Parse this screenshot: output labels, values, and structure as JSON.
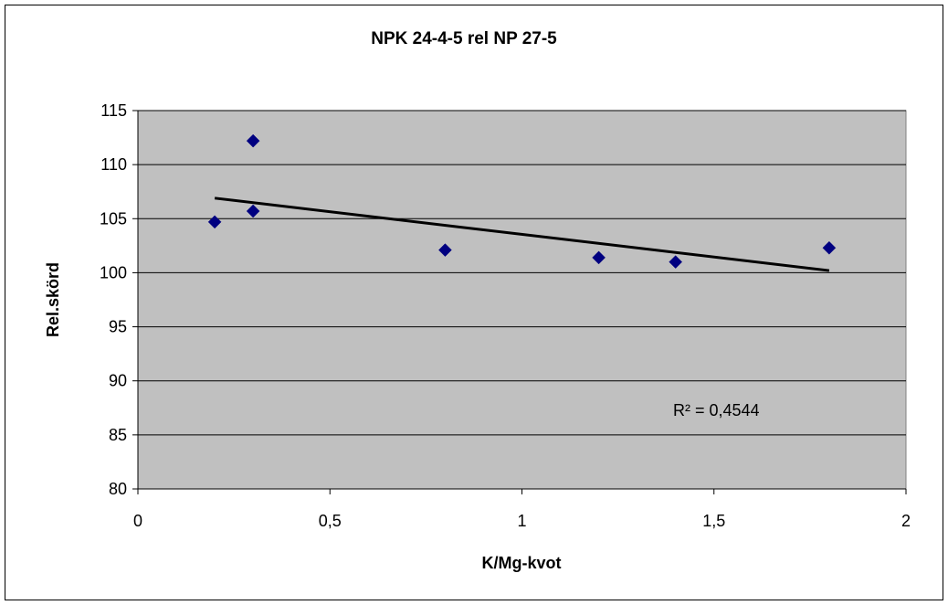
{
  "chart_data": {
    "type": "scatter",
    "title": "NPK 24-4-5 rel NP 27-5",
    "xlabel": "K/Mg-kvot",
    "ylabel": "Rel.skörd",
    "xlim": [
      0,
      2
    ],
    "ylim": [
      80,
      115
    ],
    "x_ticks": [
      "0",
      "0,5",
      "1",
      "1,5",
      "2"
    ],
    "y_ticks": [
      "80",
      "85",
      "90",
      "95",
      "100",
      "105",
      "110",
      "115"
    ],
    "grid": "horizontal",
    "legend": "none",
    "points": [
      {
        "x": 0.2,
        "y": 104.7
      },
      {
        "x": 0.3,
        "y": 112.2
      },
      {
        "x": 0.3,
        "y": 105.7
      },
      {
        "x": 0.8,
        "y": 102.1
      },
      {
        "x": 1.2,
        "y": 101.4
      },
      {
        "x": 1.4,
        "y": 101.0
      },
      {
        "x": 1.8,
        "y": 102.3
      }
    ],
    "trendline": {
      "type": "linear",
      "x_start": 0.2,
      "y_start": 106.9,
      "x_end": 1.8,
      "y_end": 100.2,
      "label": "R² = 0,4544"
    },
    "colors": {
      "plot_background": "#c0c0c0",
      "marker": "#000080",
      "trendline": "#000000",
      "gridline": "#000000"
    }
  }
}
